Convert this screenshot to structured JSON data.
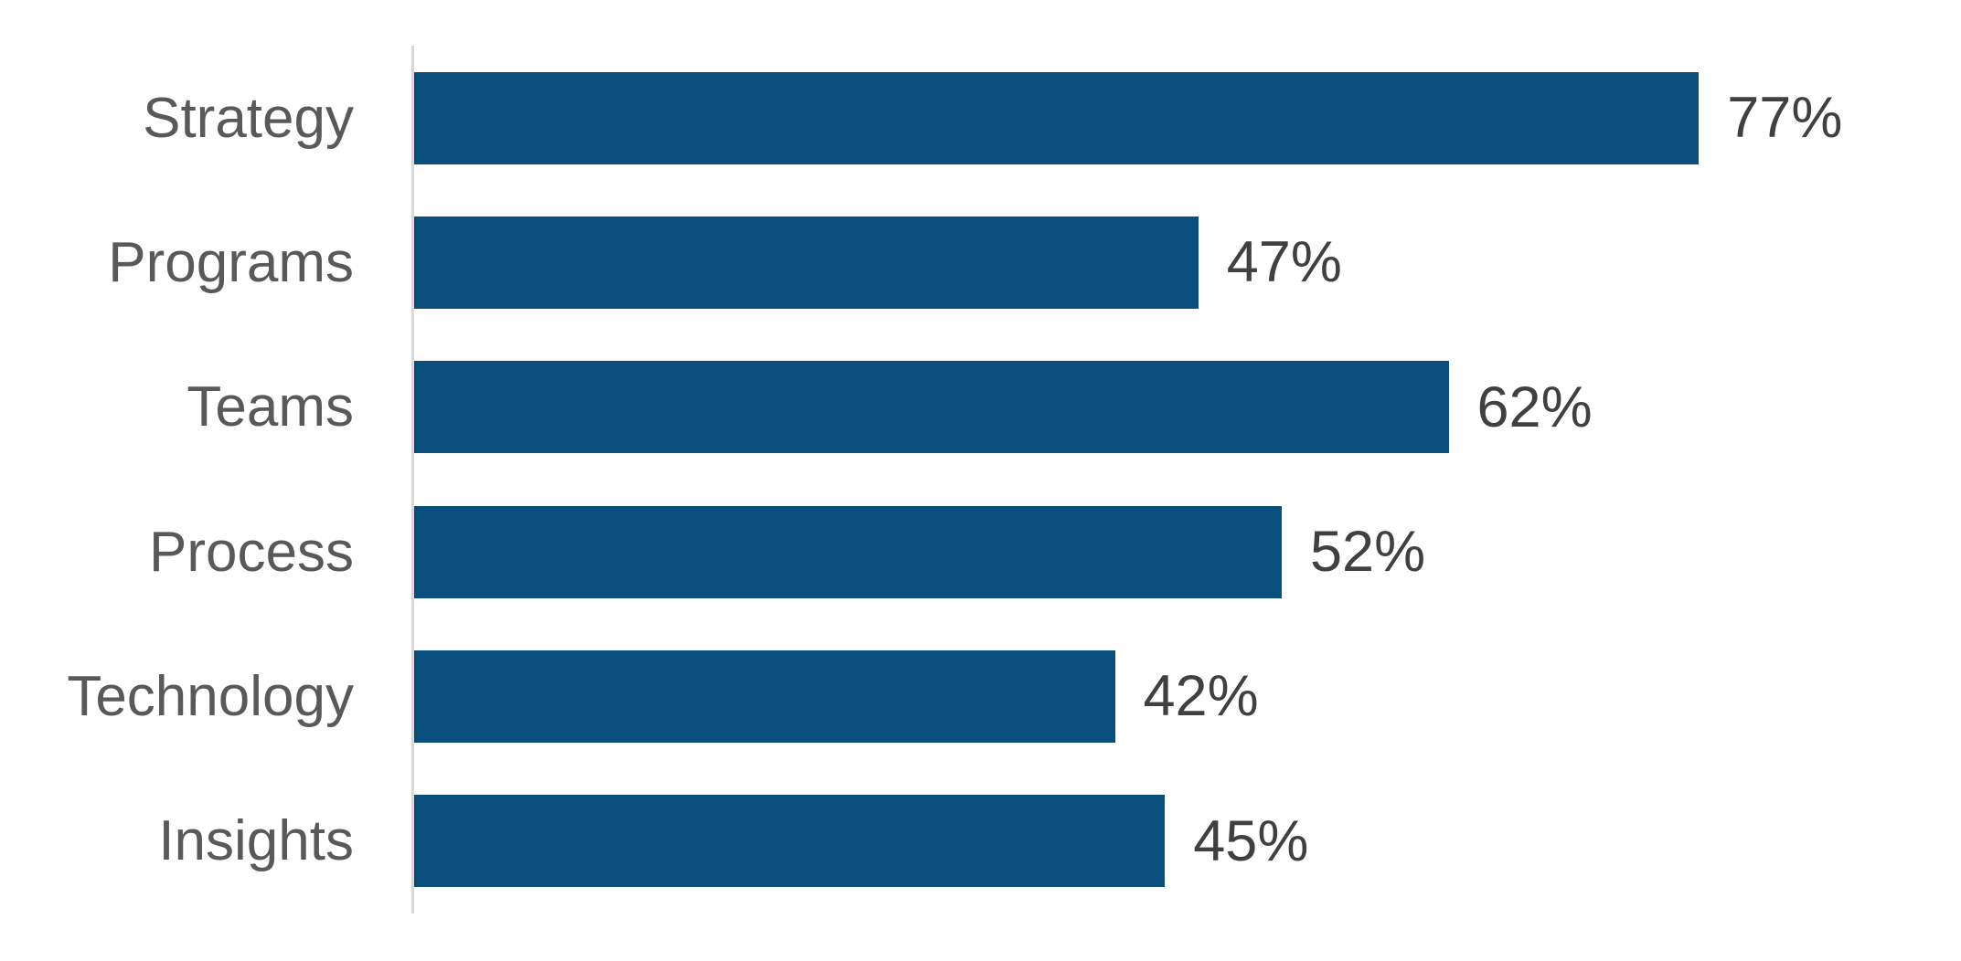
{
  "chart_data": {
    "type": "bar",
    "orientation": "horizontal",
    "title": "",
    "xlabel": "",
    "ylabel": "",
    "categories": [
      "Strategy",
      "Programs",
      "Teams",
      "Process",
      "Technology",
      "Insights"
    ],
    "values": [
      77,
      47,
      62,
      52,
      42,
      45
    ],
    "value_labels": [
      "77%",
      "47%",
      "62%",
      "52%",
      "42%",
      "45%"
    ],
    "xlim": [
      0,
      100
    ],
    "grid": false,
    "legend": false,
    "colors": {
      "bar": "#0A4E7E",
      "category_label": "#595959",
      "value_label": "#404040",
      "axis_line": "#D9D9D9",
      "background": "#FFFFFF"
    }
  }
}
